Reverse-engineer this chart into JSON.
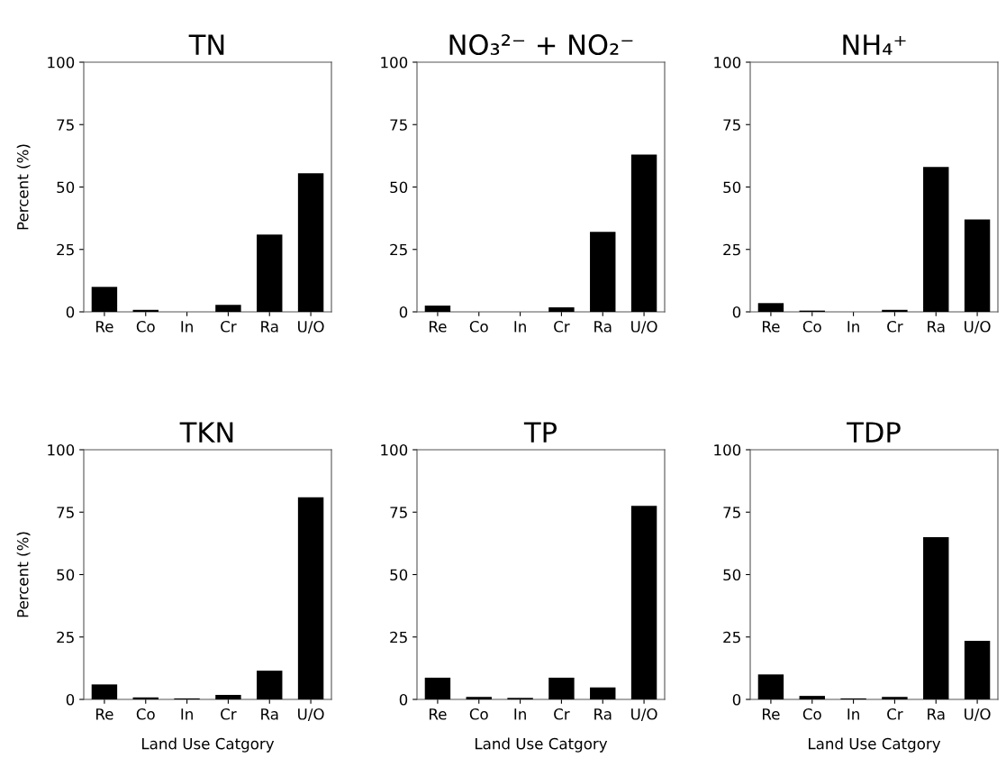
{
  "chart_data": [
    {
      "type": "bar",
      "title": "TN",
      "ylabel": "Percent (%)",
      "categories": [
        "Re",
        "Co",
        "In",
        "Cr",
        "Ra",
        "U/O"
      ],
      "values": [
        10,
        0.8,
        0,
        2.8,
        31,
        55.5
      ],
      "color": "#000000",
      "ylim": [
        0,
        100
      ],
      "yticks": [
        0,
        25,
        50,
        75,
        100
      ],
      "grid": false
    },
    {
      "type": "bar",
      "title": "NO₃²⁻ + NO₂⁻",
      "categories": [
        "Re",
        "Co",
        "In",
        "Cr",
        "Ra",
        "U/O"
      ],
      "values": [
        2.5,
        0,
        0,
        1.8,
        32,
        63
      ],
      "color": "#000000",
      "ylim": [
        0,
        100
      ],
      "yticks": [
        0,
        25,
        50,
        75,
        100
      ],
      "grid": false
    },
    {
      "type": "bar",
      "title": "NH₄⁺",
      "categories": [
        "Re",
        "Co",
        "In",
        "Cr",
        "Ra",
        "U/O"
      ],
      "values": [
        3.5,
        0.5,
        0,
        0.8,
        58,
        37
      ],
      "color": "#000000",
      "ylim": [
        0,
        100
      ],
      "yticks": [
        0,
        25,
        50,
        75,
        100
      ],
      "grid": false
    },
    {
      "type": "bar",
      "title": "TKN",
      "ylabel": "Percent (%)",
      "xlabel": "Land Use Catgory",
      "categories": [
        "Re",
        "Co",
        "In",
        "Cr",
        "Ra",
        "U/O"
      ],
      "values": [
        6,
        0.8,
        0.4,
        1.8,
        11.5,
        81
      ],
      "color": "#000000",
      "ylim": [
        0,
        100
      ],
      "yticks": [
        0,
        25,
        50,
        75,
        100
      ],
      "grid": false
    },
    {
      "type": "bar",
      "title": "TP",
      "xlabel": "Land Use Catgory",
      "categories": [
        "Re",
        "Co",
        "In",
        "Cr",
        "Ra",
        "U/O"
      ],
      "values": [
        8.7,
        1,
        0.6,
        8.7,
        4.8,
        77.5
      ],
      "color": "#000000",
      "ylim": [
        0,
        100
      ],
      "yticks": [
        0,
        25,
        50,
        75,
        100
      ],
      "grid": false
    },
    {
      "type": "bar",
      "title": "TDP",
      "xlabel": "Land Use Catgory",
      "categories": [
        "Re",
        "Co",
        "In",
        "Cr",
        "Ra",
        "U/O"
      ],
      "values": [
        10,
        1.4,
        0.4,
        1.0,
        65,
        23.5
      ],
      "color": "#000000",
      "ylim": [
        0,
        100
      ],
      "yticks": [
        0,
        25,
        50,
        75,
        100
      ],
      "grid": false
    }
  ]
}
